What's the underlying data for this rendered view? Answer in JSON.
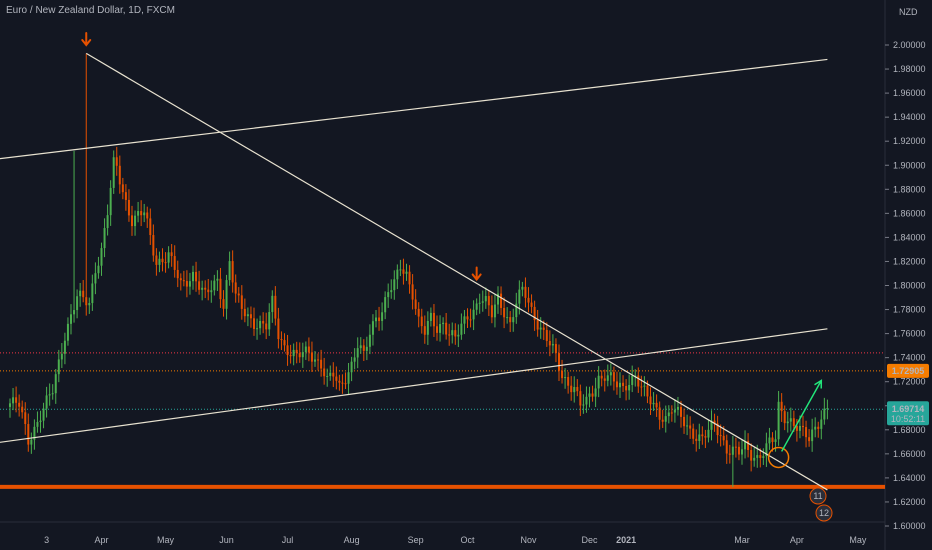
{
  "header": {
    "symbol_title": "Euro / New Zealand Dollar, 1D, FXCM",
    "currency": "NZD"
  },
  "chart_data": {
    "type": "candlestick",
    "title": "Euro / New Zealand Dollar, 1D, FXCM",
    "ylabel": "NZD",
    "ylim": [
      1.598,
      2.02
    ],
    "y_ticks": [
      "2.00000",
      "1.98000",
      "1.96000",
      "1.94000",
      "1.92000",
      "1.90000",
      "1.88000",
      "1.86000",
      "1.84000",
      "1.82000",
      "1.80000",
      "1.78000",
      "1.76000",
      "1.74000",
      "1.72000",
      "1.70000",
      "1.68000",
      "1.66000",
      "1.64000",
      "1.62000",
      "1.60000"
    ],
    "x_ticks": [
      "3",
      "Apr",
      "May",
      "Jun",
      "Jul",
      "Aug",
      "Sep",
      "Oct",
      "Nov",
      "Dec",
      "2021",
      "Mar",
      "Apr",
      "May"
    ],
    "x_ticks_bold": [
      "2021"
    ],
    "grid": false,
    "series_colors": {
      "up": "#4caf50",
      "down": "#e65100"
    },
    "price_path": [
      [
        0,
        1.702
      ],
      [
        3,
        1.7
      ],
      [
        6,
        1.672
      ],
      [
        10,
        1.692
      ],
      [
        14,
        1.712
      ],
      [
        18,
        1.76
      ],
      [
        22,
        1.79
      ],
      [
        26,
        1.785
      ],
      [
        28,
        1.815
      ],
      [
        30,
        1.83
      ],
      [
        32,
        1.86
      ],
      [
        34,
        1.9
      ],
      [
        35,
        1.897
      ],
      [
        38,
        1.87
      ],
      [
        40,
        1.855
      ],
      [
        44,
        1.86
      ],
      [
        48,
        1.82
      ],
      [
        52,
        1.825
      ],
      [
        56,
        1.8
      ],
      [
        60,
        1.81
      ],
      [
        64,
        1.79
      ],
      [
        68,
        1.805
      ],
      [
        70,
        1.785
      ],
      [
        72,
        1.82
      ],
      [
        74,
        1.79
      ],
      [
        76,
        1.78
      ],
      [
        80,
        1.77
      ],
      [
        84,
        1.765
      ],
      [
        86,
        1.785
      ],
      [
        88,
        1.76
      ],
      [
        90,
        1.75
      ],
      [
        94,
        1.74
      ],
      [
        98,
        1.745
      ],
      [
        102,
        1.735
      ],
      [
        104,
        1.72
      ],
      [
        106,
        1.725
      ],
      [
        108,
        1.715
      ],
      [
        110,
        1.725
      ],
      [
        112,
        1.735
      ],
      [
        114,
        1.75
      ],
      [
        116,
        1.74
      ],
      [
        118,
        1.76
      ],
      [
        120,
        1.775
      ],
      [
        122,
        1.78
      ],
      [
        124,
        1.795
      ],
      [
        126,
        1.8
      ],
      [
        128,
        1.815
      ],
      [
        130,
        1.81
      ],
      [
        132,
        1.795
      ],
      [
        134,
        1.77
      ],
      [
        136,
        1.76
      ],
      [
        138,
        1.772
      ],
      [
        140,
        1.765
      ],
      [
        142,
        1.77
      ],
      [
        144,
        1.76
      ],
      [
        146,
        1.755
      ],
      [
        148,
        1.765
      ],
      [
        150,
        1.775
      ],
      [
        152,
        1.78
      ],
      [
        154,
        1.79
      ],
      [
        156,
        1.785
      ],
      [
        158,
        1.775
      ],
      [
        160,
        1.79
      ],
      [
        162,
        1.78
      ],
      [
        164,
        1.768
      ],
      [
        166,
        1.785
      ],
      [
        168,
        1.795
      ],
      [
        169,
        1.792
      ],
      [
        171,
        1.78
      ],
      [
        173,
        1.77
      ],
      [
        175,
        1.76
      ],
      [
        177,
        1.75
      ],
      [
        179,
        1.74
      ],
      [
        181,
        1.725
      ],
      [
        183,
        1.72
      ],
      [
        185,
        1.715
      ],
      [
        187,
        1.7
      ],
      [
        189,
        1.702
      ],
      [
        191,
        1.712
      ],
      [
        193,
        1.724
      ],
      [
        195,
        1.726
      ],
      [
        197,
        1.722
      ],
      [
        199,
        1.716
      ],
      [
        201,
        1.714
      ],
      [
        203,
        1.722
      ],
      [
        205,
        1.726
      ],
      [
        207,
        1.714
      ],
      [
        209,
        1.706
      ],
      [
        211,
        1.7
      ],
      [
        213,
        1.694
      ],
      [
        215,
        1.69
      ],
      [
        217,
        1.697
      ],
      [
        219,
        1.692
      ],
      [
        221,
        1.686
      ],
      [
        223,
        1.68
      ],
      [
        225,
        1.676
      ],
      [
        227,
        1.672
      ],
      [
        229,
        1.678
      ],
      [
        231,
        1.684
      ],
      [
        233,
        1.676
      ],
      [
        235,
        1.665
      ],
      [
        237,
        1.663
      ],
      [
        239,
        1.66
      ],
      [
        241,
        1.665
      ],
      [
        243,
        1.66
      ],
      [
        245,
        1.658
      ],
      [
        247,
        1.662
      ],
      [
        249,
        1.668
      ],
      [
        251,
        1.672
      ],
      [
        252,
        1.699
      ],
      [
        254,
        1.692
      ],
      [
        256,
        1.688
      ],
      [
        258,
        1.682
      ],
      [
        260,
        1.676
      ],
      [
        262,
        1.672
      ],
      [
        264,
        1.683
      ],
      [
        266,
        1.692
      ],
      [
        268,
        1.698
      ]
    ],
    "price_lines": [
      {
        "price": 1.74392,
        "style": "dotted",
        "color": "#f23645"
      },
      {
        "price": 1.72905,
        "style": "dotted",
        "color": "#f57c00",
        "label": "1.72905"
      },
      {
        "price": 1.69714,
        "style": "dotted",
        "color": "#26a69a",
        "label": "1.69714"
      },
      {
        "price": 1.6325,
        "style": "solid",
        "color": "#e65100",
        "width": 4
      }
    ],
    "current_price": "1.69714",
    "countdown": "10:52:11",
    "drawings": {
      "upper_channel": [
        [
          -5,
          1.905
        ],
        [
          268,
          1.988
        ]
      ],
      "lower_channel": [
        [
          -5,
          1.669
        ],
        [
          268,
          1.764
        ]
      ],
      "downtrend": [
        [
          25,
          1.993
        ],
        [
          268,
          1.63
        ]
      ],
      "arrow_down_marks": [
        [
          25,
          2.0
        ],
        [
          153,
          1.805
        ]
      ],
      "circle": [
        252,
        1.657
      ],
      "arrow_up": [
        [
          253,
          1.662
        ],
        [
          266,
          1.721
        ]
      ]
    },
    "events_badges": [
      "11",
      "12"
    ]
  }
}
